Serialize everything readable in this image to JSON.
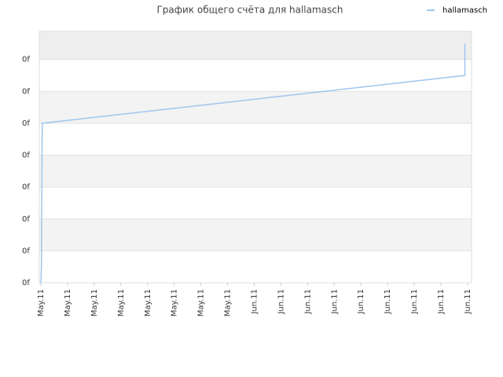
{
  "chart_data": {
    "type": "line",
    "title": "График общего счёта для hallamasch",
    "x": [
      0,
      0.02,
      0.05,
      15.9,
      15.9
    ],
    "series": [
      {
        "name": "hallamasch",
        "color": "#9ec7ee",
        "values": [
          0,
          0.5,
          5,
          6.5,
          7.5
        ]
      }
    ],
    "xlim": [
      -0.06,
      16.15
    ],
    "xticks": [
      {
        "value": 0,
        "label": "May.11"
      },
      {
        "value": 1,
        "label": "May.11"
      },
      {
        "value": 2,
        "label": "May.11"
      },
      {
        "value": 3,
        "label": "May.11"
      },
      {
        "value": 4,
        "label": "May.11"
      },
      {
        "value": 5,
        "label": "May.11"
      },
      {
        "value": 6,
        "label": "May.11"
      },
      {
        "value": 7,
        "label": "May.11"
      },
      {
        "value": 8,
        "label": "Jun.11"
      },
      {
        "value": 9,
        "label": "Jun.11"
      },
      {
        "value": 10,
        "label": "Jun.11"
      },
      {
        "value": 11,
        "label": "Jun.11"
      },
      {
        "value": 12,
        "label": "Jun.11"
      },
      {
        "value": 13,
        "label": "Jun.11"
      },
      {
        "value": 14,
        "label": "Jun.11"
      },
      {
        "value": 15,
        "label": "Jun.11"
      },
      {
        "value": 16,
        "label": "Jun.11"
      }
    ],
    "ylim": [
      0,
      7.88
    ],
    "yticks": [
      {
        "value": 0,
        "label": "0f"
      },
      {
        "value": 1,
        "label": "0f"
      },
      {
        "value": 2,
        "label": "0f"
      },
      {
        "value": 3,
        "label": "0f"
      },
      {
        "value": 4,
        "label": "0f"
      },
      {
        "value": 5,
        "label": "0f"
      },
      {
        "value": 6,
        "label": "0f"
      },
      {
        "value": 7,
        "label": "0f"
      }
    ],
    "grid": true,
    "legend": "top-right"
  }
}
